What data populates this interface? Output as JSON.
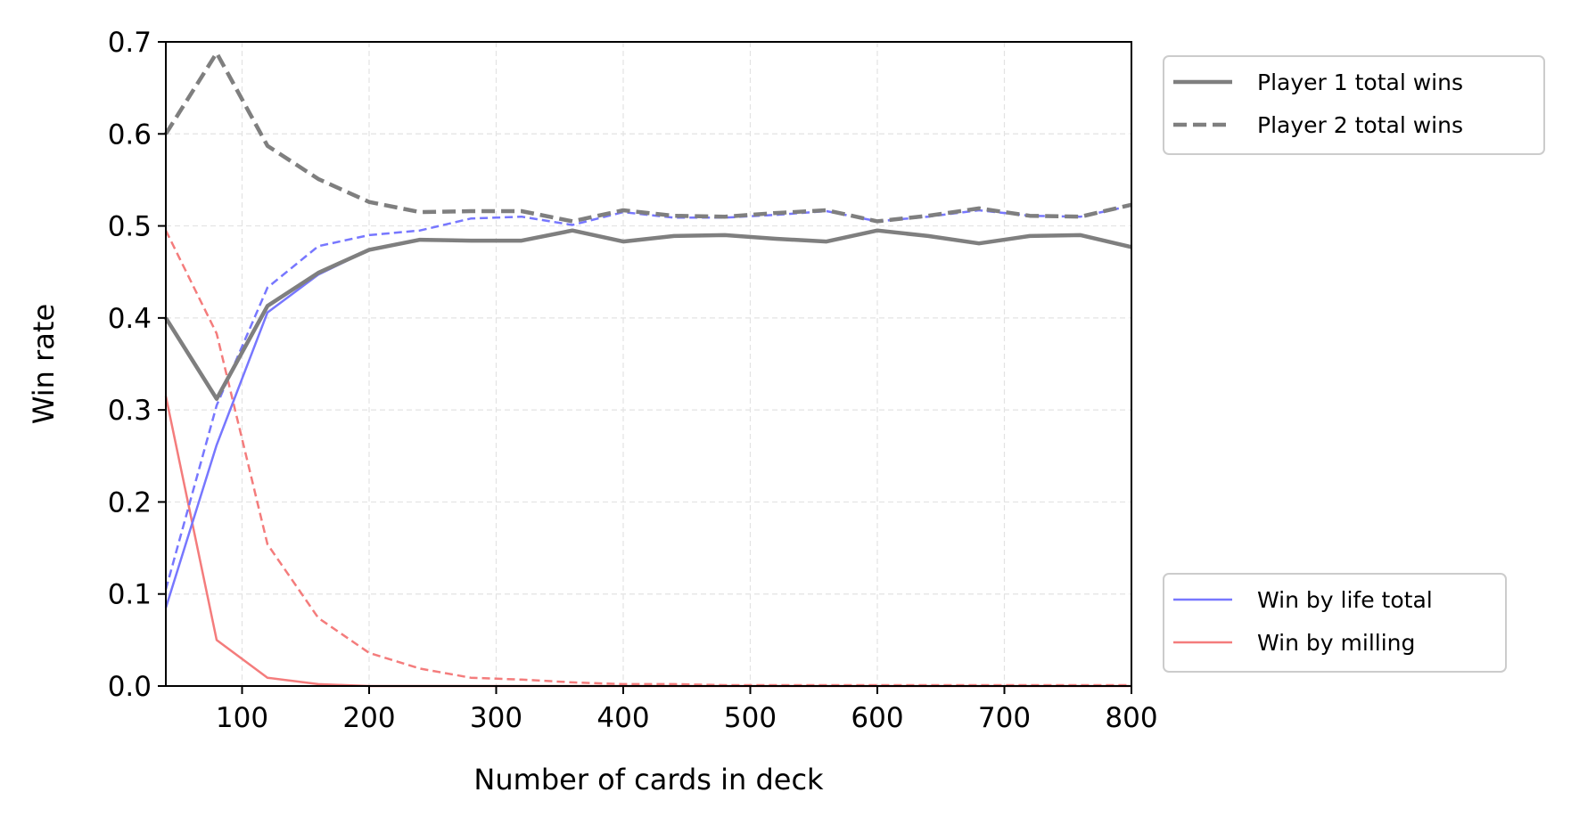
{
  "chart_data": {
    "type": "line",
    "xlabel": "Number of cards in deck",
    "ylabel": "Win rate",
    "xlim": [
      40,
      800
    ],
    "ylim": [
      0,
      0.7
    ],
    "xticks": [
      100,
      200,
      300,
      400,
      500,
      600,
      700,
      800
    ],
    "yticks": [
      0.0,
      0.1,
      0.2,
      0.3,
      0.4,
      0.5,
      0.6,
      0.7
    ],
    "xtick_labels": [
      "100",
      "200",
      "300",
      "400",
      "500",
      "600",
      "700",
      "800"
    ],
    "ytick_labels": [
      "0.0",
      "0.1",
      "0.2",
      "0.3",
      "0.4",
      "0.5",
      "0.6",
      "0.7"
    ],
    "grid": true,
    "x": [
      40,
      80,
      120,
      160,
      200,
      240,
      280,
      320,
      360,
      400,
      440,
      480,
      520,
      560,
      600,
      640,
      680,
      720,
      760,
      800
    ],
    "series": [
      {
        "key": "p1_total",
        "name": "Player 1 total wins",
        "color": "#7f7f7f",
        "style": "solid-thick",
        "values": [
          0.4,
          0.312,
          0.413,
          0.449,
          0.474,
          0.485,
          0.484,
          0.484,
          0.495,
          0.483,
          0.489,
          0.49,
          0.486,
          0.483,
          0.495,
          0.489,
          0.481,
          0.489,
          0.49,
          0.477
        ]
      },
      {
        "key": "p2_total",
        "name": "Player 2 total wins",
        "color": "#7f7f7f",
        "style": "dashed-thick",
        "values": [
          0.6,
          0.688,
          0.587,
          0.551,
          0.526,
          0.515,
          0.516,
          0.516,
          0.505,
          0.517,
          0.511,
          0.51,
          0.514,
          0.517,
          0.505,
          0.511,
          0.519,
          0.511,
          0.51,
          0.523
        ]
      },
      {
        "key": "p1_life",
        "color": "#7777ff",
        "style": "solid-thin",
        "values": [
          0.085,
          0.262,
          0.406,
          0.447,
          0.474,
          0.485,
          0.484,
          0.484,
          0.495,
          0.483,
          0.489,
          0.49,
          0.486,
          0.483,
          0.495,
          0.489,
          0.481,
          0.489,
          0.49,
          0.477
        ]
      },
      {
        "key": "p2_life",
        "color": "#7777ff",
        "style": "dashed-thin",
        "values": [
          0.105,
          0.305,
          0.433,
          0.478,
          0.49,
          0.495,
          0.508,
          0.51,
          0.501,
          0.515,
          0.509,
          0.509,
          0.512,
          0.516,
          0.505,
          0.51,
          0.517,
          0.511,
          0.51,
          0.522
        ]
      },
      {
        "key": "p1_mill",
        "color": "#f47c7c",
        "style": "solid-thin",
        "values": [
          0.315,
          0.05,
          0.009,
          0.002,
          0.0,
          0.0,
          0.0,
          0.0,
          0.0,
          0.0,
          0.0,
          0.0,
          0.0,
          0.0,
          0.0,
          0.0,
          0.0,
          0.0,
          0.0,
          0.0
        ]
      },
      {
        "key": "p2_mill",
        "color": "#f47c7c",
        "style": "dashed-thin",
        "values": [
          0.495,
          0.383,
          0.154,
          0.074,
          0.036,
          0.019,
          0.009,
          0.007,
          0.004,
          0.002,
          0.002,
          0.001,
          0.001,
          0.001,
          0.001,
          0.001,
          0.001,
          0.001,
          0.001,
          0.001
        ]
      }
    ],
    "legends": [
      {
        "placement": "outside-top-right",
        "entries": [
          {
            "label": "Player 1 total wins",
            "color": "#7f7f7f",
            "style": "solid-thick"
          },
          {
            "label": "Player 2 total wins",
            "color": "#7f7f7f",
            "style": "dashed-thick"
          }
        ]
      },
      {
        "placement": "outside-bottom-right",
        "entries": [
          {
            "label": "Win by life total",
            "color": "#7777ff",
            "style": "solid-thin"
          },
          {
            "label": "Win by milling",
            "color": "#f47c7c",
            "style": "solid-thin"
          }
        ]
      }
    ]
  }
}
